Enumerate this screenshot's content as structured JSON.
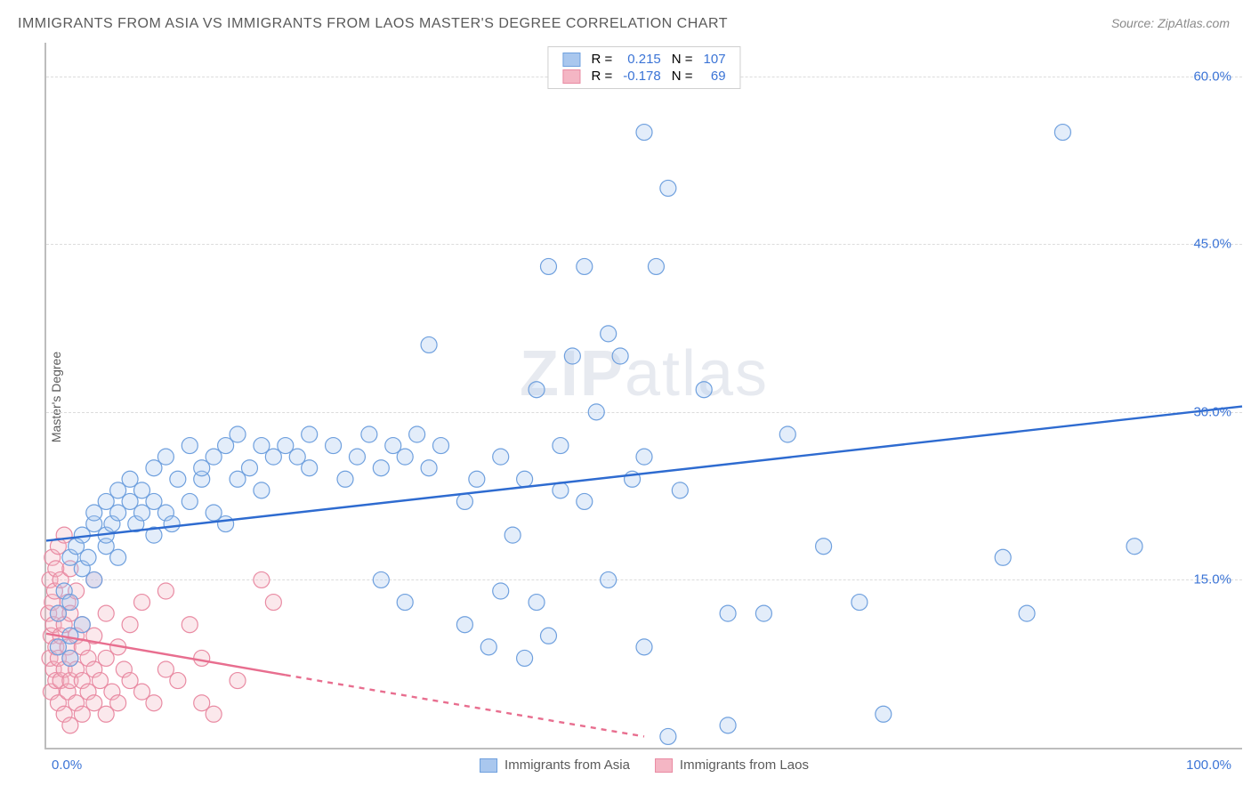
{
  "title": "IMMIGRANTS FROM ASIA VS IMMIGRANTS FROM LAOS MASTER'S DEGREE CORRELATION CHART",
  "source": "Source: ZipAtlas.com",
  "ylabel": "Master's Degree",
  "watermark": {
    "bold": "ZIP",
    "rest": "atlas"
  },
  "chart": {
    "type": "scatter",
    "xlim": [
      0,
      100
    ],
    "ylim": [
      0,
      63
    ],
    "xticks": [
      {
        "pos": 0,
        "label": "0.0%"
      },
      {
        "pos": 100,
        "label": "100.0%"
      }
    ],
    "yticks": [
      {
        "pos": 15,
        "label": "15.0%"
      },
      {
        "pos": 30,
        "label": "30.0%"
      },
      {
        "pos": 45,
        "label": "45.0%"
      },
      {
        "pos": 60,
        "label": "60.0%"
      }
    ],
    "grid_color": "#dcdcdc",
    "axis_color": "#bdbdbd",
    "background_color": "#ffffff",
    "marker_radius": 9,
    "marker_stroke_width": 1.2,
    "marker_fill_opacity": 0.32,
    "trend_line_width": 2.4
  },
  "series_a": {
    "label": "Immigrants from Asia",
    "color_fill": "#a9c7ee",
    "color_stroke": "#6fa0de",
    "line_color": "#2e6bd0",
    "R": "0.215",
    "N": "107",
    "trend": {
      "x1": 0,
      "y1": 18.5,
      "x2": 100,
      "y2": 30.5
    },
    "points": [
      [
        1,
        9
      ],
      [
        1,
        12
      ],
      [
        1.5,
        14
      ],
      [
        2,
        8
      ],
      [
        2,
        10
      ],
      [
        2,
        13
      ],
      [
        2,
        17
      ],
      [
        2.5,
        18
      ],
      [
        3,
        11
      ],
      [
        3,
        16
      ],
      [
        3,
        19
      ],
      [
        3.5,
        17
      ],
      [
        4,
        15
      ],
      [
        4,
        20
      ],
      [
        4,
        21
      ],
      [
        5,
        18
      ],
      [
        5,
        19
      ],
      [
        5,
        22
      ],
      [
        5.5,
        20
      ],
      [
        6,
        17
      ],
      [
        6,
        21
      ],
      [
        6,
        23
      ],
      [
        7,
        22
      ],
      [
        7,
        24
      ],
      [
        7.5,
        20
      ],
      [
        8,
        21
      ],
      [
        8,
        23
      ],
      [
        9,
        19
      ],
      [
        9,
        22
      ],
      [
        9,
        25
      ],
      [
        10,
        21
      ],
      [
        10,
        26
      ],
      [
        10.5,
        20
      ],
      [
        11,
        24
      ],
      [
        12,
        22
      ],
      [
        12,
        27
      ],
      [
        13,
        24
      ],
      [
        13,
        25
      ],
      [
        14,
        26
      ],
      [
        14,
        21
      ],
      [
        15,
        20
      ],
      [
        15,
        27
      ],
      [
        16,
        24
      ],
      [
        16,
        28
      ],
      [
        17,
        25
      ],
      [
        18,
        27
      ],
      [
        18,
        23
      ],
      [
        19,
        26
      ],
      [
        20,
        27
      ],
      [
        21,
        26
      ],
      [
        22,
        25
      ],
      [
        22,
        28
      ],
      [
        24,
        27
      ],
      [
        25,
        24
      ],
      [
        26,
        26
      ],
      [
        27,
        28
      ],
      [
        28,
        25
      ],
      [
        28,
        15
      ],
      [
        29,
        27
      ],
      [
        30,
        26
      ],
      [
        30,
        13
      ],
      [
        31,
        28
      ],
      [
        32,
        25
      ],
      [
        32,
        36
      ],
      [
        33,
        27
      ],
      [
        35,
        11
      ],
      [
        35,
        22
      ],
      [
        36,
        24
      ],
      [
        37,
        9
      ],
      [
        38,
        26
      ],
      [
        38,
        14
      ],
      [
        39,
        19
      ],
      [
        40,
        8
      ],
      [
        40,
        24
      ],
      [
        41,
        13
      ],
      [
        41,
        32
      ],
      [
        42,
        10
      ],
      [
        42,
        43
      ],
      [
        43,
        23
      ],
      [
        43,
        27
      ],
      [
        44,
        35
      ],
      [
        45,
        22
      ],
      [
        45,
        43
      ],
      [
        46,
        30
      ],
      [
        47,
        15
      ],
      [
        47,
        37
      ],
      [
        48,
        35
      ],
      [
        49,
        24
      ],
      [
        50,
        26
      ],
      [
        50,
        9
      ],
      [
        50,
        55
      ],
      [
        51,
        43
      ],
      [
        52,
        1
      ],
      [
        52,
        50
      ],
      [
        53,
        23
      ],
      [
        55,
        32
      ],
      [
        57,
        12
      ],
      [
        57,
        2
      ],
      [
        60,
        12
      ],
      [
        62,
        28
      ],
      [
        65,
        18
      ],
      [
        68,
        13
      ],
      [
        70,
        3
      ],
      [
        80,
        17
      ],
      [
        82,
        12
      ],
      [
        85,
        55
      ],
      [
        91,
        18
      ]
    ]
  },
  "series_b": {
    "label": "Immigrants from Laos",
    "color_fill": "#f4b6c4",
    "color_stroke": "#e98ba3",
    "line_color": "#e86e8f",
    "R": "-0.178",
    "N": "69",
    "trend_solid": {
      "x1": 0,
      "y1": 10.2,
      "x2": 20,
      "y2": 6.5
    },
    "trend_dashed": {
      "x1": 20,
      "y1": 6.5,
      "x2": 50,
      "y2": 1
    },
    "points": [
      [
        0.2,
        12
      ],
      [
        0.3,
        8
      ],
      [
        0.3,
        15
      ],
      [
        0.4,
        5
      ],
      [
        0.4,
        10
      ],
      [
        0.5,
        13
      ],
      [
        0.5,
        17
      ],
      [
        0.6,
        7
      ],
      [
        0.6,
        11
      ],
      [
        0.7,
        14
      ],
      [
        0.8,
        6
      ],
      [
        0.8,
        9
      ],
      [
        0.8,
        16
      ],
      [
        1,
        4
      ],
      [
        1,
        8
      ],
      [
        1,
        12
      ],
      [
        1,
        18
      ],
      [
        1.2,
        6
      ],
      [
        1.2,
        10
      ],
      [
        1.2,
        15
      ],
      [
        1.5,
        3
      ],
      [
        1.5,
        7
      ],
      [
        1.5,
        11
      ],
      [
        1.5,
        19
      ],
      [
        1.8,
        5
      ],
      [
        1.8,
        9
      ],
      [
        1.8,
        13
      ],
      [
        2,
        2
      ],
      [
        2,
        6
      ],
      [
        2,
        8
      ],
      [
        2,
        12
      ],
      [
        2,
        16
      ],
      [
        2.5,
        4
      ],
      [
        2.5,
        7
      ],
      [
        2.5,
        10
      ],
      [
        2.5,
        14
      ],
      [
        3,
        3
      ],
      [
        3,
        6
      ],
      [
        3,
        9
      ],
      [
        3,
        11
      ],
      [
        3.5,
        5
      ],
      [
        3.5,
        8
      ],
      [
        4,
        4
      ],
      [
        4,
        7
      ],
      [
        4,
        10
      ],
      [
        4,
        15
      ],
      [
        4.5,
        6
      ],
      [
        5,
        3
      ],
      [
        5,
        8
      ],
      [
        5,
        12
      ],
      [
        5.5,
        5
      ],
      [
        6,
        4
      ],
      [
        6,
        9
      ],
      [
        6.5,
        7
      ],
      [
        7,
        6
      ],
      [
        7,
        11
      ],
      [
        8,
        5
      ],
      [
        8,
        13
      ],
      [
        9,
        4
      ],
      [
        10,
        7
      ],
      [
        10,
        14
      ],
      [
        11,
        6
      ],
      [
        12,
        11
      ],
      [
        13,
        4
      ],
      [
        13,
        8
      ],
      [
        14,
        3
      ],
      [
        16,
        6
      ],
      [
        18,
        15
      ],
      [
        19,
        13
      ]
    ]
  },
  "legend_top": {
    "R_label": "R =",
    "N_label": "N ="
  },
  "legend_bottom": {
    "a": "Immigrants from Asia",
    "b": "Immigrants from Laos"
  }
}
